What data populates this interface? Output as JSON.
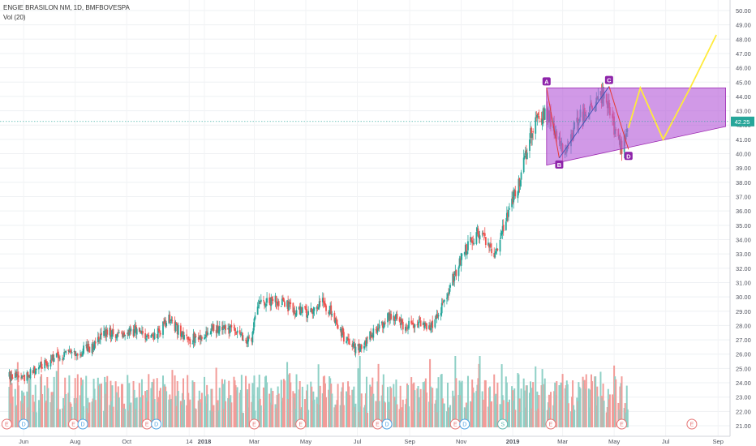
{
  "header": {
    "symbol_line": "ENGIE BRASILON NM, 1D, BMFBOVESPA",
    "volume_line": "Vol (20)"
  },
  "colors": {
    "up": "#26a69a",
    "down": "#ef5350",
    "vol_up": "#8fd0c6",
    "vol_down": "#f29c99",
    "pattern_fill": "#b45bd8",
    "pattern_stroke": "#9c27b0",
    "projection": "#ffeb3b",
    "price_line": "#26a69a",
    "event_earnings": "#e57373",
    "event_dividend": "#4fa3e3",
    "event_split": "#5fb8b0"
  },
  "chart_data": {
    "type": "candlestick",
    "title": "ENGIE BRASILON NM, 1D, BMFBOVESPA",
    "indicator": "Vol (20)",
    "y_axis": {
      "ylim": [
        20.5,
        50.5
      ],
      "ticks": [
        "21.00",
        "22.00",
        "23.00",
        "24.00",
        "25.00",
        "26.00",
        "27.00",
        "28.00",
        "29.00",
        "30.00",
        "31.00",
        "32.00",
        "33.00",
        "34.00",
        "35.00",
        "36.00",
        "37.00",
        "38.00",
        "39.00",
        "40.00",
        "41.00",
        "42.00",
        "43.00",
        "44.00",
        "45.00",
        "46.00",
        "47.00",
        "48.00",
        "49.00",
        "50.00"
      ],
      "position": "right"
    },
    "x_axis": {
      "labels": [
        "Jun",
        "Aug",
        "Oct",
        "14",
        "2018",
        "Mar",
        "May",
        "Jul",
        "Sep",
        "Nov",
        "2019",
        "Mar",
        "May",
        "Jul",
        "Sep"
      ]
    },
    "last_price": 42.25,
    "last_price_label": "42.25",
    "price_path": [
      [
        "2017-05-15",
        24.5
      ],
      [
        "2017-06-01",
        24.3
      ],
      [
        "2017-06-20",
        25.2
      ],
      [
        "2017-07-10",
        25.8
      ],
      [
        "2017-08-01",
        26.0
      ],
      [
        "2017-08-20",
        26.5
      ],
      [
        "2017-09-10",
        27.6
      ],
      [
        "2017-09-25",
        27.2
      ],
      [
        "2017-10-15",
        27.8
      ],
      [
        "2017-11-01",
        27.0
      ],
      [
        "2017-11-20",
        28.5
      ],
      [
        "2017-12-10",
        27.0
      ],
      [
        "2018-01-01",
        27.3
      ],
      [
        "2018-01-20",
        28.0
      ],
      [
        "2018-02-10",
        27.5
      ],
      [
        "2018-02-25",
        26.8
      ],
      [
        "2018-03-05",
        29.6
      ],
      [
        "2018-03-25",
        29.8
      ],
      [
        "2018-04-15",
        29.2
      ],
      [
        "2018-05-05",
        28.8
      ],
      [
        "2018-05-20",
        29.6
      ],
      [
        "2018-06-01",
        29.0
      ],
      [
        "2018-06-15",
        27.2
      ],
      [
        "2018-07-01",
        26.3
      ],
      [
        "2018-07-20",
        27.5
      ],
      [
        "2018-08-10",
        28.8
      ],
      [
        "2018-08-25",
        28.0
      ],
      [
        "2018-09-10",
        28.2
      ],
      [
        "2018-09-25",
        27.8
      ],
      [
        "2018-10-05",
        28.8
      ],
      [
        "2018-10-20",
        31.0
      ],
      [
        "2018-11-05",
        33.2
      ],
      [
        "2018-11-20",
        34.5
      ],
      [
        "2018-12-01",
        33.8
      ],
      [
        "2018-12-10",
        32.8
      ],
      [
        "2018-12-25",
        35.5
      ],
      [
        "2019-01-10",
        38.2
      ],
      [
        "2019-01-25",
        42.0
      ],
      [
        "2019-02-10",
        43.0
      ],
      [
        "2019-02-25",
        41.0
      ],
      [
        "2019-03-05",
        40.0
      ],
      [
        "2019-03-20",
        42.5
      ],
      [
        "2019-04-05",
        43.2
      ],
      [
        "2019-04-20",
        44.2
      ],
      [
        "2019-05-01",
        41.8
      ],
      [
        "2019-05-10",
        40.5
      ],
      [
        "2019-05-18",
        42.25
      ]
    ],
    "pattern": {
      "labels": [
        "A",
        "B",
        "C",
        "D"
      ],
      "points": [
        {
          "label": "A",
          "date": "2019-02-10",
          "price": 44.6
        },
        {
          "label": "B",
          "date": "2019-02-25",
          "price": 39.7
        },
        {
          "label": "C",
          "date": "2019-04-25",
          "price": 44.7
        },
        {
          "label": "D",
          "date": "2019-05-18",
          "price": 40.3
        }
      ],
      "channel": {
        "start_date": "2019-02-10",
        "end_date": "2019-09-10",
        "top_price": 44.6,
        "bottom_start_price": 39.2,
        "bottom_end_price": 41.9
      },
      "projection": [
        [
          "2019-05-18",
          41.8
        ],
        [
          "2019-06-01",
          44.6
        ],
        [
          "2019-06-28",
          41.0
        ],
        [
          "2019-07-30",
          44.6
        ],
        [
          "2019-08-30",
          48.3
        ]
      ]
    },
    "event_markers": [
      {
        "type": "E",
        "date": "2017-05-12"
      },
      {
        "type": "D",
        "date": "2017-06-01"
      },
      {
        "type": "E",
        "date": "2017-07-30"
      },
      {
        "type": "D",
        "date": "2017-08-10"
      },
      {
        "type": "E",
        "date": "2017-10-25"
      },
      {
        "type": "D",
        "date": "2017-11-05"
      },
      {
        "type": "E",
        "date": "2018-03-01"
      },
      {
        "type": "E",
        "date": "2018-04-25"
      },
      {
        "type": "E",
        "date": "2018-07-25"
      },
      {
        "type": "D",
        "date": "2018-08-05"
      },
      {
        "type": "E",
        "date": "2018-10-25"
      },
      {
        "type": "D",
        "date": "2018-11-05"
      },
      {
        "type": "S",
        "date": "2018-12-20"
      },
      {
        "type": "E",
        "date": "2019-02-15"
      },
      {
        "type": "E",
        "date": "2019-05-10",
        "upcoming": false
      },
      {
        "type": "E",
        "date": "2019-08-01",
        "upcoming": true
      }
    ]
  }
}
